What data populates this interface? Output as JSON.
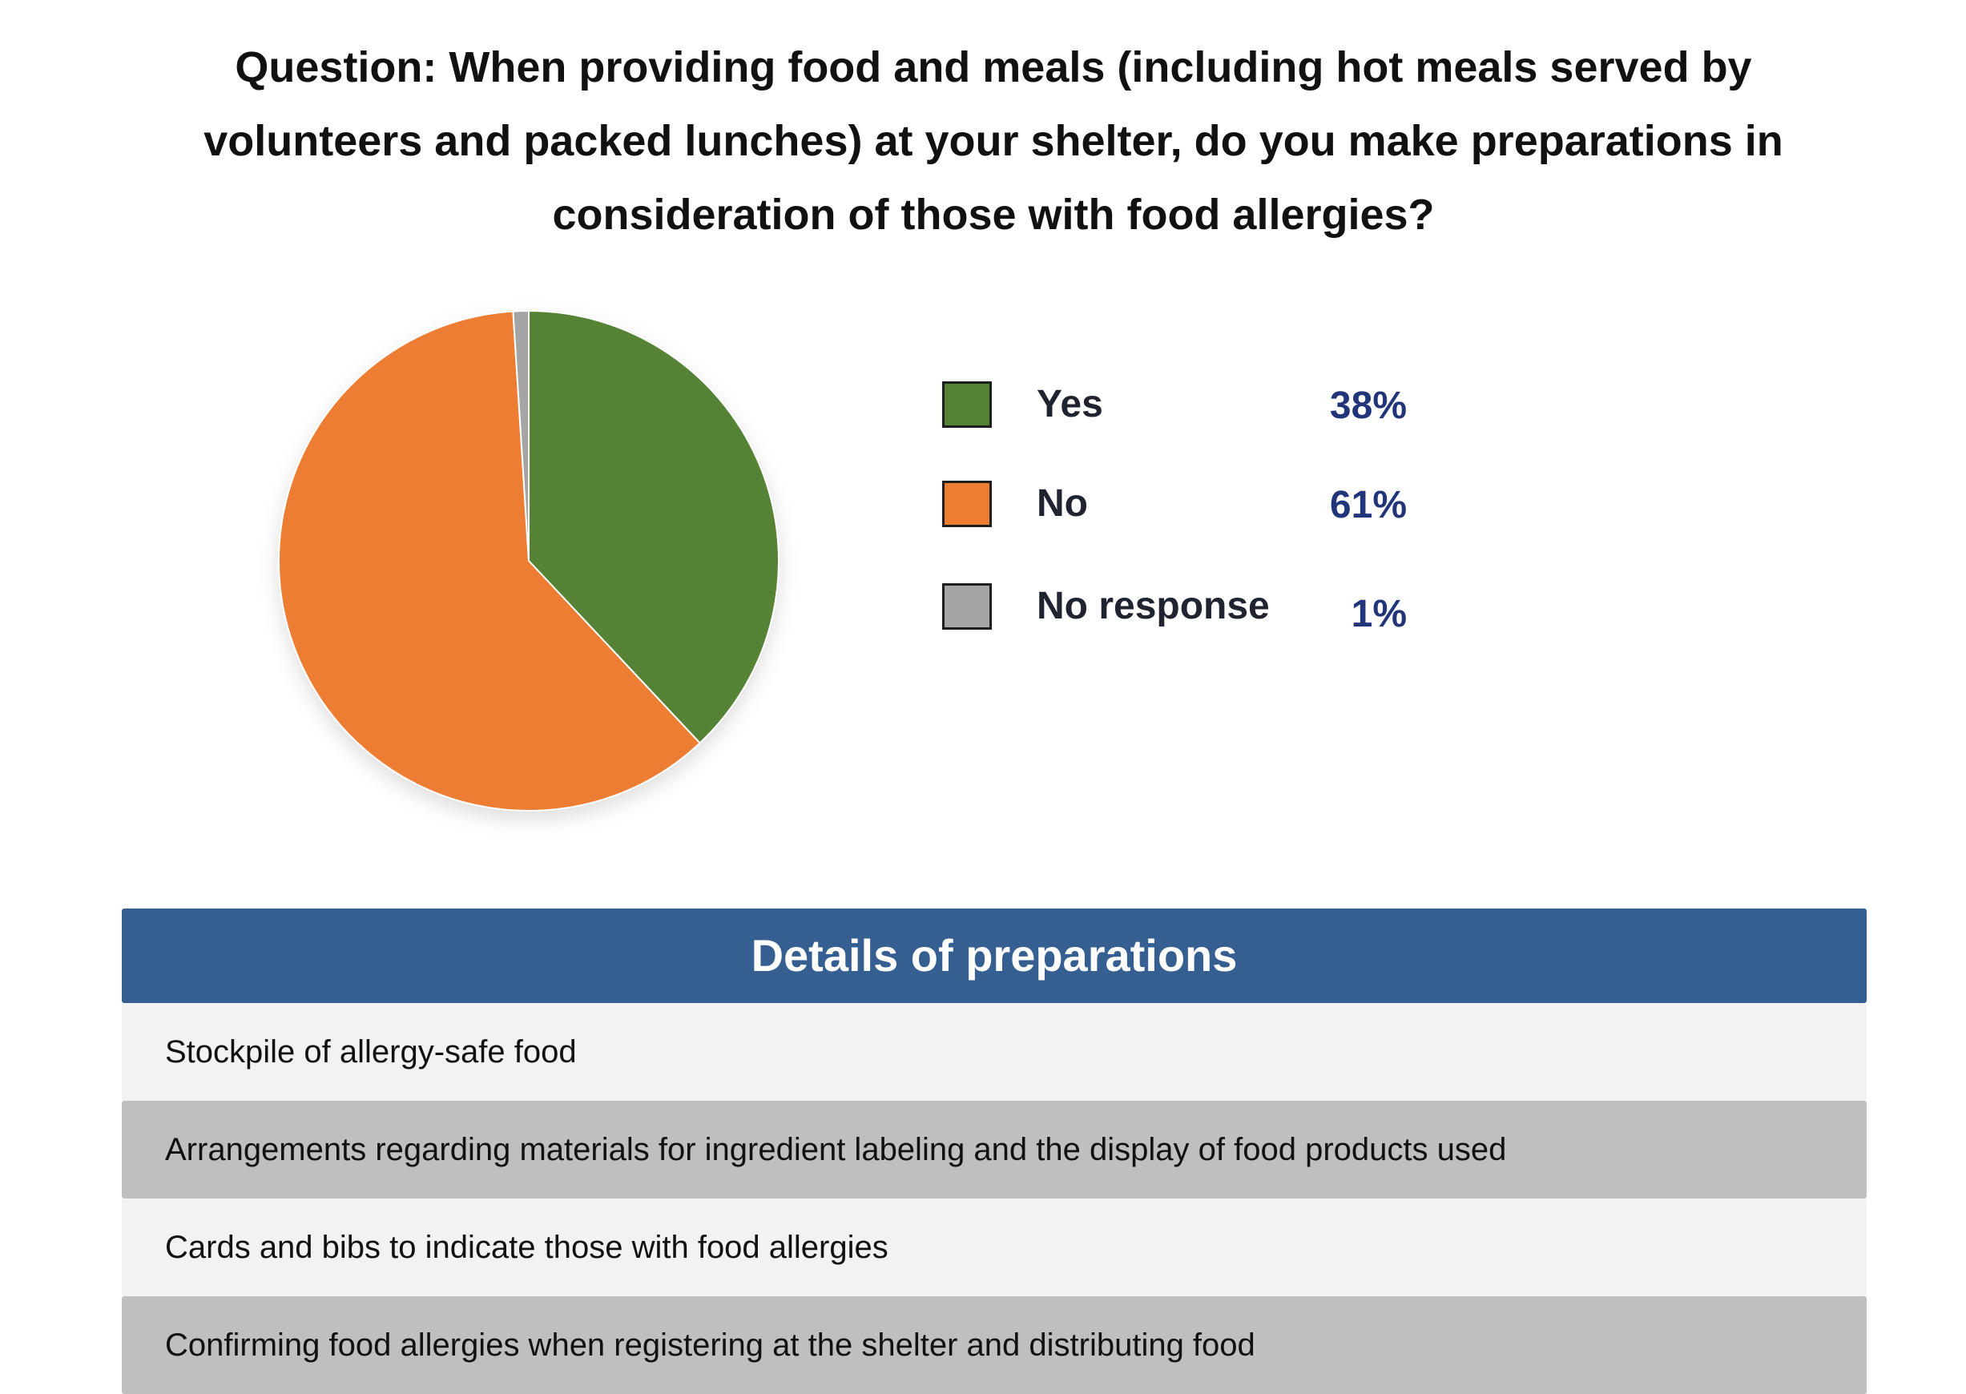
{
  "title": "Question: When providing food and meals (including hot meals served by volunteers and packed lunches) at your shelter, do you make preparations in consideration of those with food allergies?",
  "chart_data": {
    "type": "pie",
    "title": "",
    "slices": [
      {
        "label": "Yes",
        "value": 38,
        "value_label": "38%",
        "color": "#548235"
      },
      {
        "label": "No",
        "value": 61,
        "value_label": "61%",
        "color": "#ed7d31"
      },
      {
        "label": "No response",
        "value": 1,
        "value_label": "1%",
        "color": "#a5a5a5"
      }
    ],
    "legend_position": "right"
  },
  "details": {
    "header": "Details of preparations",
    "rows": [
      "Stockpile of allergy-safe food",
      "Arrangements regarding materials for ingredient labeling and the display of food products used",
      "Cards and bibs to indicate those with food allergies",
      "Confirming food allergies when registering at the shelter and distributing food"
    ]
  }
}
